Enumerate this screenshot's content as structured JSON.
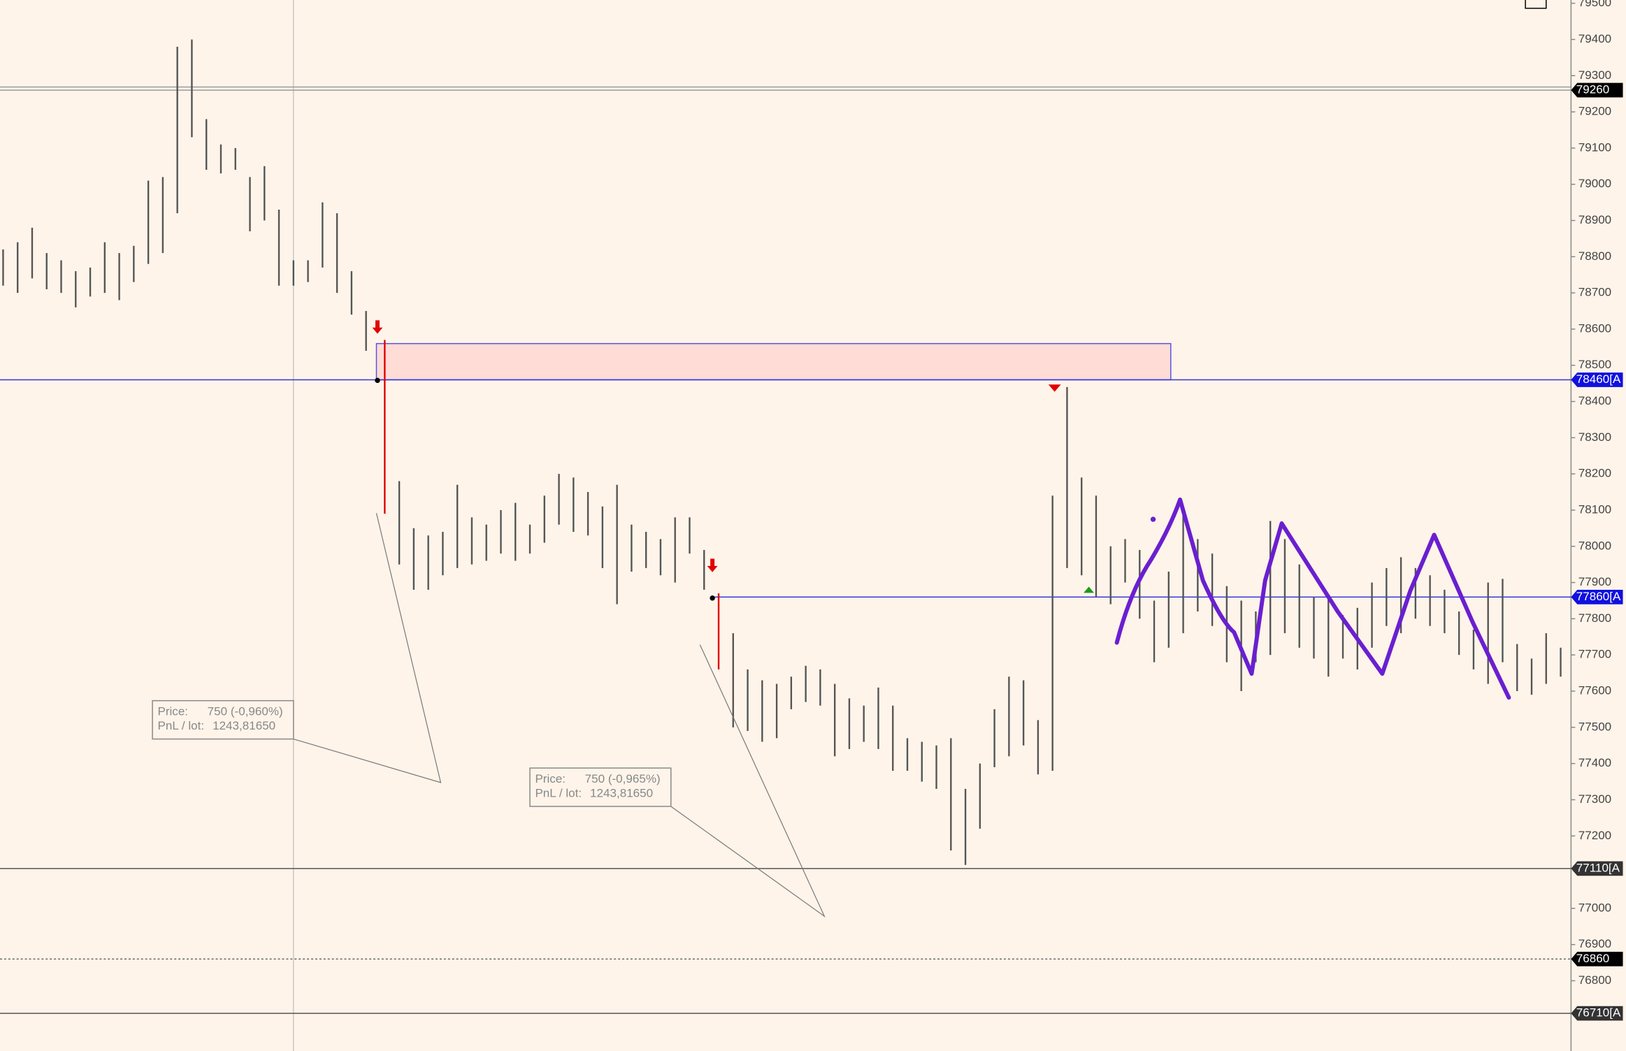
{
  "chart_data": {
    "type": "ohlc",
    "ylim": [
      76606,
      79509
    ],
    "yticks": [
      79500,
      79400,
      79300,
      79200,
      79100,
      79000,
      78900,
      78800,
      78700,
      78600,
      78500,
      78400,
      78300,
      78200,
      78100,
      78000,
      77900,
      77800,
      77700,
      77600,
      77500,
      77400,
      77300,
      77200,
      77000,
      76900,
      76800
    ],
    "series": [
      {
        "color": "#555555",
        "highlight_color": "#e00000",
        "highlight_indices": [
          26,
          49
        ],
        "high": [
          78820,
          78840,
          78880,
          78810,
          78790,
          78760,
          78770,
          78840,
          78810,
          78830,
          79010,
          79020,
          79380,
          79400,
          79180,
          79110,
          79100,
          79020,
          79050,
          78930,
          78790,
          78790,
          78950,
          78920,
          78760,
          78650,
          78570,
          78180,
          78050,
          78030,
          78040,
          78170,
          78080,
          78060,
          78100,
          78120,
          78060,
          78140,
          78200,
          78190,
          78150,
          78110,
          78170,
          78060,
          78040,
          78020,
          78080,
          78080,
          77990,
          77870,
          77760,
          77660,
          77630,
          77620,
          77640,
          77670,
          77660,
          77620,
          77580,
          77560,
          77610,
          77560,
          77470,
          77460,
          77450,
          77470,
          77330,
          77400,
          77550,
          77640,
          77630,
          77520,
          78140,
          78440,
          78190,
          78140,
          78000,
          78020,
          77990,
          77850,
          77930,
          78100,
          78020,
          77980,
          77890,
          77850,
          77820,
          78070,
          78020,
          77950,
          77860,
          77860,
          77810,
          77830,
          77900,
          77940,
          77970,
          77940,
          77920,
          77880,
          77820,
          77770,
          77900,
          77910,
          77730,
          77690,
          77760,
          77720
        ],
        "low": [
          78720,
          78700,
          78740,
          78710,
          78700,
          78660,
          78690,
          78700,
          78680,
          78730,
          78780,
          78810,
          78920,
          79130,
          79040,
          79030,
          79040,
          78870,
          78900,
          78720,
          78720,
          78730,
          78770,
          78700,
          78640,
          78540,
          78090,
          77950,
          77880,
          77880,
          77920,
          77940,
          77950,
          77960,
          77980,
          77960,
          77980,
          78010,
          78060,
          78040,
          78030,
          77940,
          77840,
          77930,
          77940,
          77920,
          77900,
          77980,
          77880,
          77660,
          77500,
          77490,
          77460,
          77470,
          77550,
          77570,
          77560,
          77420,
          77440,
          77460,
          77440,
          77380,
          77380,
          77350,
          77330,
          77160,
          77120,
          77220,
          77390,
          77420,
          77450,
          77370,
          77380,
          77940,
          77920,
          77860,
          77840,
          77900,
          77800,
          77680,
          77720,
          77760,
          77820,
          77780,
          77680,
          77600,
          77680,
          77700,
          77760,
          77720,
          77690,
          77640,
          77690,
          77660,
          77720,
          77780,
          77760,
          77800,
          77780,
          77760,
          77700,
          77660,
          77620,
          77680,
          77600,
          77590,
          77620,
          77640
        ]
      }
    ],
    "zone": {
      "low": 78460,
      "high": 78560,
      "color": "#ffdcd6"
    },
    "levels": [
      {
        "value": 79260,
        "label": "79260",
        "color": "#999999",
        "tag": "#000000"
      },
      {
        "value": 78460,
        "label": "78460[A",
        "color": "#3333dd",
        "tag": "#1010e0"
      },
      {
        "value": 77860,
        "label": "77860[A",
        "color": "#3333dd",
        "tag": "#1010e0"
      },
      {
        "value": 77110,
        "label": "77110[A",
        "color": "#555555",
        "tag": "#333333"
      },
      {
        "value": 76860,
        "label": "76860",
        "color": "#666666",
        "tag": "#000000",
        "dotted": true
      },
      {
        "value": 76710,
        "label": "76710[A",
        "color": "#555555",
        "tag": "#333333"
      }
    ],
    "tooltips": [
      {
        "price_label": "Price:",
        "price": "750 (-0,960%)",
        "pnl_label": "PnL / lot:",
        "pnl": "1243,81650"
      },
      {
        "price_label": "Price:",
        "price": "750 (-0,965%)",
        "pnl_label": "PnL / lot:",
        "pnl": "1243,81650"
      }
    ]
  }
}
